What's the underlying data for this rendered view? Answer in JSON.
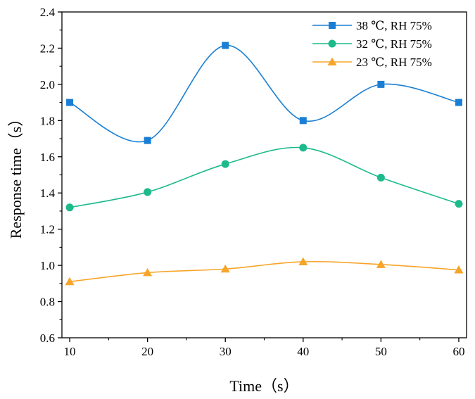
{
  "chart_data": {
    "type": "line",
    "title": "",
    "xlabel": "Time（s）",
    "ylabel": "Response time（s）",
    "x": [
      10,
      20,
      30,
      40,
      50,
      60
    ],
    "xlim": [
      9,
      61
    ],
    "ylim": [
      0.6,
      2.4
    ],
    "xticks": [
      10,
      20,
      30,
      40,
      50,
      60
    ],
    "yticks": [
      0.6,
      0.8,
      1.0,
      1.2,
      1.4,
      1.6,
      1.8,
      2.0,
      2.2,
      2.4
    ],
    "xtick_labels": [
      "10",
      "20",
      "30",
      "40",
      "50",
      "60"
    ],
    "ytick_labels": [
      "0.6",
      "0.8",
      "1.0",
      "1.2",
      "1.4",
      "1.6",
      "1.8",
      "2.0",
      "2.2",
      "2.4"
    ],
    "grid": false,
    "legend_position": "top-right",
    "series": [
      {
        "name": "38 ℃, RH 75%",
        "marker": "square",
        "color": "#1a7fd4",
        "values": [
          1.9,
          1.69,
          2.215,
          1.8,
          2.0,
          1.9
        ]
      },
      {
        "name": "32 ℃, RH 75%",
        "marker": "circle",
        "color": "#1dba8c",
        "values": [
          1.32,
          1.405,
          1.56,
          1.65,
          1.485,
          1.34
        ]
      },
      {
        "name": "23 ℃, RH 75%",
        "marker": "triangle",
        "color": "#f7a52a",
        "values": [
          0.91,
          0.96,
          0.98,
          1.02,
          1.005,
          0.975
        ]
      }
    ]
  }
}
